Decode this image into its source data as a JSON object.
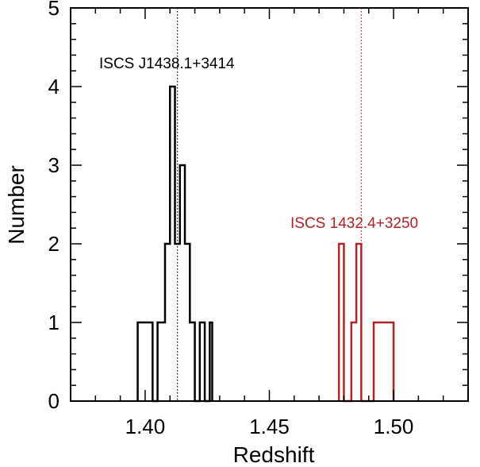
{
  "chart_data": {
    "type": "histogram",
    "title": "",
    "xlabel": "Redshift",
    "ylabel": "Number",
    "xlim": [
      1.37,
      1.53
    ],
    "ylim": [
      0,
      5
    ],
    "x_ticks": [
      {
        "value": 1.4,
        "label": "1.40"
      },
      {
        "value": 1.45,
        "label": "1.45"
      },
      {
        "value": 1.5,
        "label": "1.50"
      }
    ],
    "y_ticks": [
      {
        "value": 0,
        "label": "0"
      },
      {
        "value": 1,
        "label": "1"
      },
      {
        "value": 2,
        "label": "2"
      },
      {
        "value": 3,
        "label": "3"
      },
      {
        "value": 4,
        "label": "4"
      },
      {
        "value": 5,
        "label": "5"
      }
    ],
    "series": [
      {
        "name": "ISCS J1438.1+3414",
        "color": "#000000",
        "mean_redshift": 1.413,
        "bins": [
          {
            "x0": 1.397,
            "x1": 1.403,
            "count": 1
          },
          {
            "x0": 1.403,
            "x1": 1.405,
            "count": 0
          },
          {
            "x0": 1.405,
            "x1": 1.408,
            "count": 1
          },
          {
            "x0": 1.408,
            "x1": 1.41,
            "count": 2
          },
          {
            "x0": 1.41,
            "x1": 1.412,
            "count": 4
          },
          {
            "x0": 1.412,
            "x1": 1.414,
            "count": 2
          },
          {
            "x0": 1.414,
            "x1": 1.416,
            "count": 3
          },
          {
            "x0": 1.416,
            "x1": 1.418,
            "count": 2
          },
          {
            "x0": 1.418,
            "x1": 1.42,
            "count": 1
          },
          {
            "x0": 1.42,
            "x1": 1.422,
            "count": 0
          },
          {
            "x0": 1.422,
            "x1": 1.424,
            "count": 1
          },
          {
            "x0": 1.424,
            "x1": 1.426,
            "count": 0
          },
          {
            "x0": 1.426,
            "x1": 1.427,
            "count": 1
          }
        ]
      },
      {
        "name": "ISCS 1432.4+3250",
        "color": "#b22222",
        "mean_redshift": 1.487,
        "bins": [
          {
            "x0": 1.478,
            "x1": 1.48,
            "count": 2
          },
          {
            "x0": 1.48,
            "x1": 1.483,
            "count": 0
          },
          {
            "x0": 1.483,
            "x1": 1.485,
            "count": 1
          },
          {
            "x0": 1.485,
            "x1": 1.487,
            "count": 2
          },
          {
            "x0": 1.487,
            "x1": 1.489,
            "count": 0
          },
          {
            "x0": 1.489,
            "x1": 1.492,
            "count": 0
          },
          {
            "x0": 1.492,
            "x1": 1.5,
            "count": 1
          }
        ]
      }
    ]
  }
}
